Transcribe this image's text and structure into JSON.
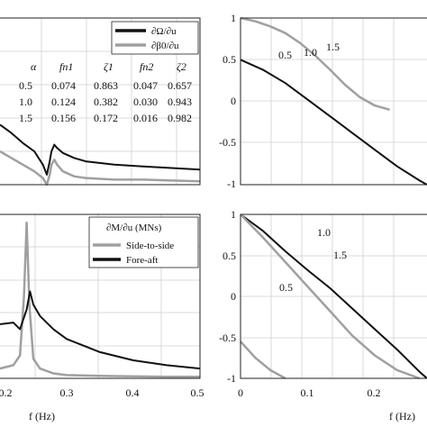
{
  "colors": {
    "black": "#111111",
    "gray": "#a0a0a0",
    "grid": "#cfcfcf"
  },
  "chart_data": [
    {
      "type": "line",
      "panel": "top-left",
      "legend": [
        "∂Ω/∂u",
        "∂β0/∂u"
      ],
      "legend_placement": "top-right",
      "grid": true,
      "xlim": [
        0.15,
        0.5
      ],
      "ylim": [
        0,
        1
      ],
      "table": {
        "headers": [
          "α",
          "fn1",
          "ζ1",
          "fn2",
          "ζ2"
        ],
        "rows": [
          [
            "0.5",
            "0.074",
            "0.863",
            "0.047",
            "0.657"
          ],
          [
            "1.0",
            "0.124",
            "0.382",
            "0.030",
            "0.943"
          ],
          [
            "1.5",
            "0.156",
            "0.172",
            "0.016",
            "0.982"
          ]
        ]
      },
      "series": [
        {
          "name": "∂Ω/∂u",
          "color": "#111111",
          "x": [
            0.15,
            0.17,
            0.19,
            0.21,
            0.225,
            0.232,
            0.237,
            0.24,
            0.245,
            0.25,
            0.26,
            0.28,
            0.3,
            0.35,
            0.4,
            0.45,
            0.5
          ],
          "y": [
            0.36,
            0.31,
            0.25,
            0.2,
            0.12,
            0.06,
            0.14,
            0.2,
            0.24,
            0.22,
            0.19,
            0.16,
            0.14,
            0.12,
            0.11,
            0.1,
            0.09
          ]
        },
        {
          "name": "∂β0/∂u",
          "color": "#a0a0a0",
          "x": [
            0.15,
            0.17,
            0.19,
            0.21,
            0.225,
            0.232,
            0.237,
            0.24,
            0.245,
            0.25,
            0.26,
            0.28,
            0.3,
            0.35,
            0.4,
            0.45,
            0.5
          ],
          "y": [
            0.2,
            0.16,
            0.12,
            0.08,
            0.04,
            0.0,
            0.06,
            0.12,
            0.15,
            0.12,
            0.08,
            0.05,
            0.04,
            0.03,
            0.03,
            0.025,
            0.02
          ]
        }
      ]
    },
    {
      "type": "line",
      "panel": "top-right",
      "grid": true,
      "xlim": [
        0,
        0.25
      ],
      "ylim": [
        -1,
        1
      ],
      "yticks": [
        "1",
        "0.5",
        "0",
        "-0.5",
        "-1"
      ],
      "annotations": [
        "0.5",
        "1.0",
        "1.5"
      ],
      "series": [
        {
          "name": "",
          "color": "#111111",
          "x": [
            0,
            0.03,
            0.06,
            0.09,
            0.12,
            0.15,
            0.18,
            0.21,
            0.24,
            0.25
          ],
          "y": [
            0.5,
            0.38,
            0.22,
            0.02,
            -0.18,
            -0.38,
            -0.58,
            -0.78,
            -0.95,
            -1.0
          ]
        },
        {
          "name": "",
          "color": "#a0a0a0",
          "x": [
            0,
            0.02,
            0.04,
            0.06,
            0.08,
            0.1,
            0.12,
            0.14,
            0.16,
            0.18,
            0.2
          ],
          "y": [
            1.0,
            0.96,
            0.9,
            0.82,
            0.7,
            0.55,
            0.38,
            0.2,
            0.05,
            -0.05,
            -0.1
          ]
        }
      ]
    },
    {
      "type": "line",
      "panel": "bottom-left",
      "grid": true,
      "xlim": [
        0.2,
        0.5
      ],
      "xticks": [
        "0.2",
        "0.3",
        "0.4",
        "0.5"
      ],
      "xlabel": "f (Hz)",
      "legend_title": "∂M/∂u (MNs)",
      "legend": [
        "Side-to-side",
        "Fore-aft"
      ],
      "legend_placement": "top-right",
      "series": [
        {
          "name": "Side-to-side",
          "color": "#a0a0a0",
          "x": [
            0.2,
            0.22,
            0.23,
            0.236,
            0.24,
            0.244,
            0.25,
            0.26,
            0.28,
            0.3,
            0.35,
            0.4,
            0.45,
            0.5
          ],
          "y": [
            0.06,
            0.08,
            0.14,
            0.5,
            0.95,
            0.45,
            0.12,
            0.06,
            0.03,
            0.02,
            0.015,
            0.012,
            0.01,
            0.01
          ]
        },
        {
          "name": "Fore-aft",
          "color": "#111111",
          "x": [
            0.2,
            0.22,
            0.23,
            0.24,
            0.245,
            0.25,
            0.26,
            0.28,
            0.3,
            0.35,
            0.4,
            0.45,
            0.5
          ],
          "y": [
            0.33,
            0.34,
            0.3,
            0.42,
            0.53,
            0.45,
            0.38,
            0.3,
            0.24,
            0.16,
            0.11,
            0.08,
            0.06
          ]
        }
      ]
    },
    {
      "type": "line",
      "panel": "bottom-right",
      "grid": true,
      "xlim": [
        0,
        0.25
      ],
      "ylim": [
        -1,
        1
      ],
      "xticks": [
        "0",
        "0.1",
        "0.2"
      ],
      "yticks": [
        "1",
        "0.5",
        "0",
        "-0.5",
        "-1"
      ],
      "xlabel": "f (Hz)",
      "annotations": [
        "1.0",
        "1.5",
        "0.5"
      ],
      "series": [
        {
          "name": "",
          "color": "#111111",
          "x": [
            0,
            0.03,
            0.06,
            0.09,
            0.12,
            0.15,
            0.18,
            0.21,
            0.24,
            0.25
          ],
          "y": [
            1.0,
            0.8,
            0.55,
            0.32,
            0.1,
            -0.15,
            -0.4,
            -0.65,
            -0.92,
            -1.0
          ]
        },
        {
          "name": "",
          "color": "#a0a0a0",
          "x": [
            0,
            0.03,
            0.06,
            0.09,
            0.12,
            0.15,
            0.18,
            0.21,
            0.24
          ],
          "y": [
            1.0,
            0.72,
            0.42,
            0.12,
            -0.18,
            -0.48,
            -0.72,
            -0.9,
            -1.0
          ]
        },
        {
          "name": "",
          "color": "#a0a0a0",
          "x": [
            0,
            0.02,
            0.04,
            0.06
          ],
          "y": [
            -0.55,
            -0.75,
            -0.9,
            -1.0
          ]
        }
      ]
    }
  ]
}
